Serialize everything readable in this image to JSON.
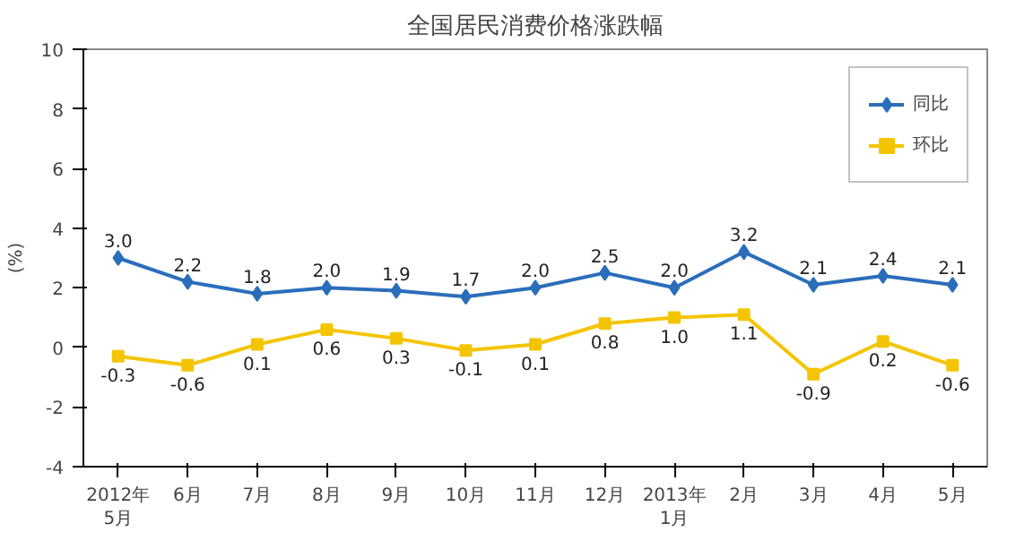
{
  "chart_data": {
    "type": "line",
    "title": "全国居民消费价格涨跌幅",
    "ylabel": "(%)",
    "categories": [
      "2012年\n5月",
      "6月",
      "7月",
      "8月",
      "9月",
      "10月",
      "11月",
      "12月",
      "2013年\n1月",
      "2月",
      "3月",
      "4月",
      "5月"
    ],
    "series": [
      {
        "name": "同比",
        "color": "#2a6ebb",
        "marker": "diamond",
        "values": [
          3.0,
          2.2,
          1.8,
          2.0,
          1.9,
          1.7,
          2.0,
          2.5,
          2.0,
          3.2,
          2.1,
          2.4,
          2.1
        ],
        "value_labels": [
          "3.0",
          "2.2",
          "1.8",
          "2.0",
          "1.9",
          "1.7",
          "2.0",
          "2.5",
          "2.0",
          "3.2",
          "2.1",
          "2.4",
          "2.1"
        ]
      },
      {
        "name": "环比",
        "color": "#f5c400",
        "marker": "square",
        "values": [
          -0.3,
          -0.6,
          0.1,
          0.6,
          0.3,
          -0.1,
          0.1,
          0.8,
          1.0,
          1.1,
          -0.9,
          0.2,
          -0.6
        ],
        "value_labels": [
          "-0.3",
          "-0.6",
          "0.1",
          "0.6",
          "0.3",
          "-0.1",
          "0.1",
          "0.8",
          "1.0",
          "1.1",
          "-0.9",
          "0.2",
          "-0.6"
        ]
      }
    ],
    "ylim": [
      -4,
      10
    ],
    "yticks": [
      -4,
      -2,
      0,
      2,
      4,
      6,
      8,
      10
    ],
    "grid": false,
    "legend": "top right",
    "line_style": "solid"
  }
}
